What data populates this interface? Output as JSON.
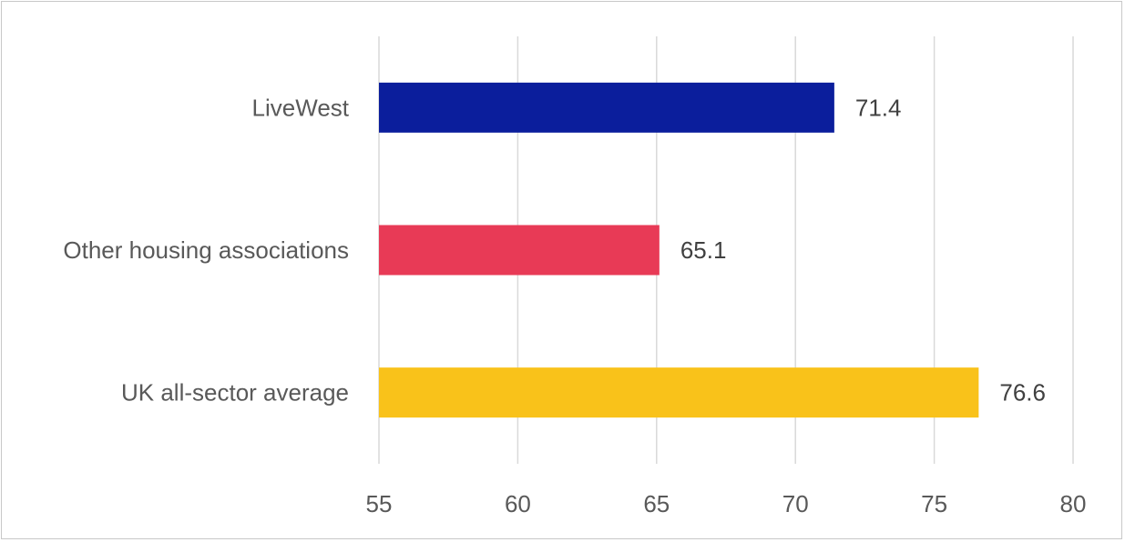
{
  "chart_data": {
    "type": "bar",
    "orientation": "horizontal",
    "categories": [
      "LiveWest",
      "Other housing associations",
      "UK all-sector average"
    ],
    "values": [
      71.4,
      65.1,
      76.6
    ],
    "data_labels": [
      "71.4",
      "65.1",
      "76.6"
    ],
    "colors": [
      "#0b1e9c",
      "#e83a56",
      "#f9c21a"
    ],
    "xlim": [
      55,
      80
    ],
    "xticks": [
      55,
      60,
      65,
      70,
      75,
      80
    ],
    "xtick_labels": [
      "55",
      "60",
      "65",
      "70",
      "75",
      "80"
    ],
    "grid": true,
    "legend": false
  }
}
